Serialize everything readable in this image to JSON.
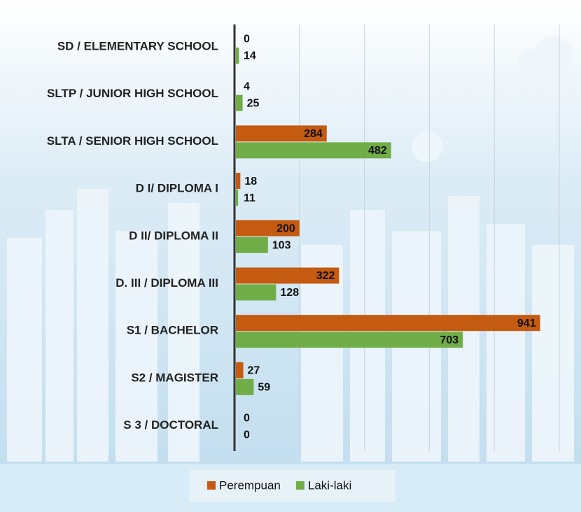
{
  "chart_data": {
    "type": "bar",
    "orientation": "horizontal",
    "categories": [
      "SD / ELEMENTARY SCHOOL",
      "SLTP / JUNIOR HIGH SCHOOL",
      "SLTA / SENIOR HIGH SCHOOL",
      "D I/ DIPLOMA I",
      "D II/ DIPLOMA II",
      "D. III / DIPLOMA III",
      "S1 / BACHELOR",
      "S2 / MAGISTER",
      "S 3 / DOCTORAL"
    ],
    "series": [
      {
        "name": "Perempuan",
        "color": "#c55a11",
        "values": [
          0,
          4,
          284,
          18,
          200,
          322,
          941,
          27,
          0
        ]
      },
      {
        "name": "Laki-laki",
        "color": "#70ad47",
        "values": [
          14,
          25,
          482,
          11,
          103,
          128,
          703,
          59,
          0
        ]
      }
    ],
    "xlim": [
      0,
      1000
    ],
    "xticks": [
      0,
      200,
      400,
      600,
      800,
      1000
    ],
    "grid": true,
    "legend": "bottom"
  }
}
